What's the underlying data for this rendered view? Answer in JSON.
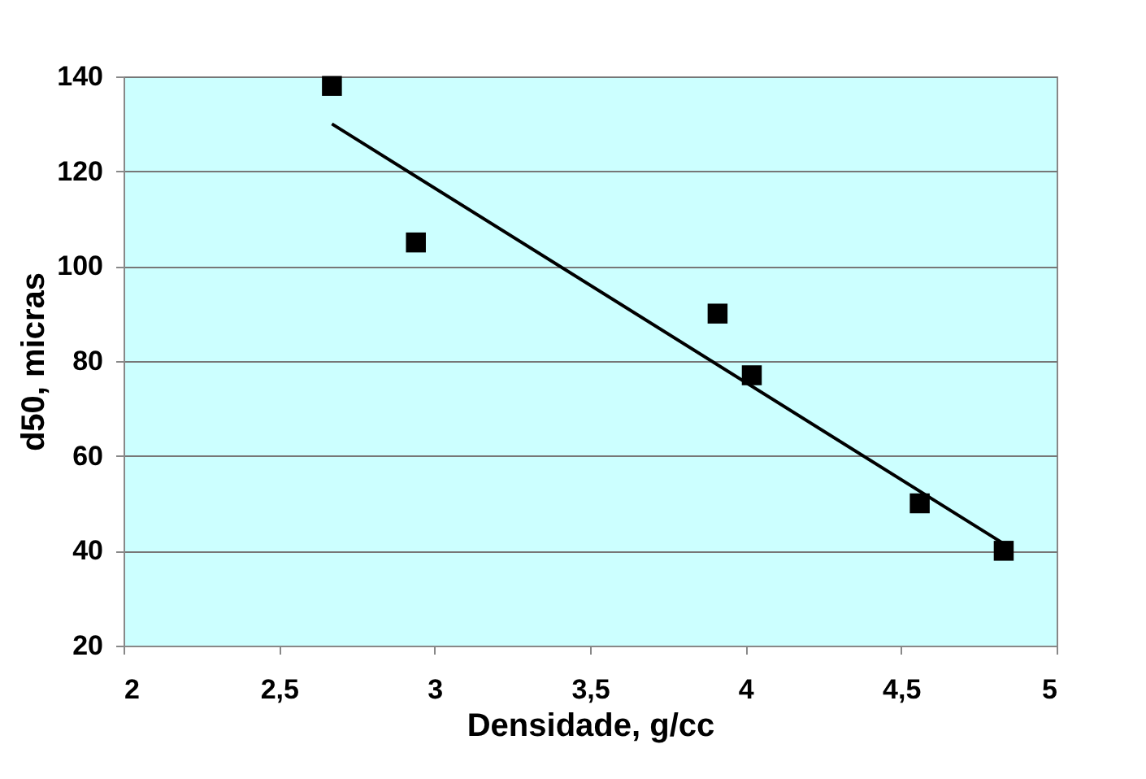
{
  "chart_data": {
    "type": "scatter",
    "xlabel": "Densidade, g/cc",
    "ylabel": "d50, micras",
    "xlim": [
      2,
      5
    ],
    "ylim": [
      20,
      140
    ],
    "xticks": [
      2,
      {
        "value": 2.5,
        "label": "2,5"
      },
      3,
      {
        "value": 3.5,
        "label": "3,5"
      },
      4,
      {
        "value": 4.5,
        "label": "4,5"
      },
      5
    ],
    "yticks": [
      20,
      40,
      60,
      80,
      100,
      120,
      140
    ],
    "grid": "y",
    "series": [
      {
        "type": "scatter",
        "marker": "square",
        "color": "#000000",
        "x": [
          2.67,
          2.94,
          3.91,
          4.02,
          4.56,
          4.83
        ],
        "values": [
          138,
          105,
          90,
          77,
          50,
          40
        ]
      },
      {
        "type": "line",
        "line_style": "solid",
        "color": "#000000",
        "x": [
          2.67,
          4.83
        ],
        "values": [
          130,
          41.5
        ]
      }
    ]
  }
}
